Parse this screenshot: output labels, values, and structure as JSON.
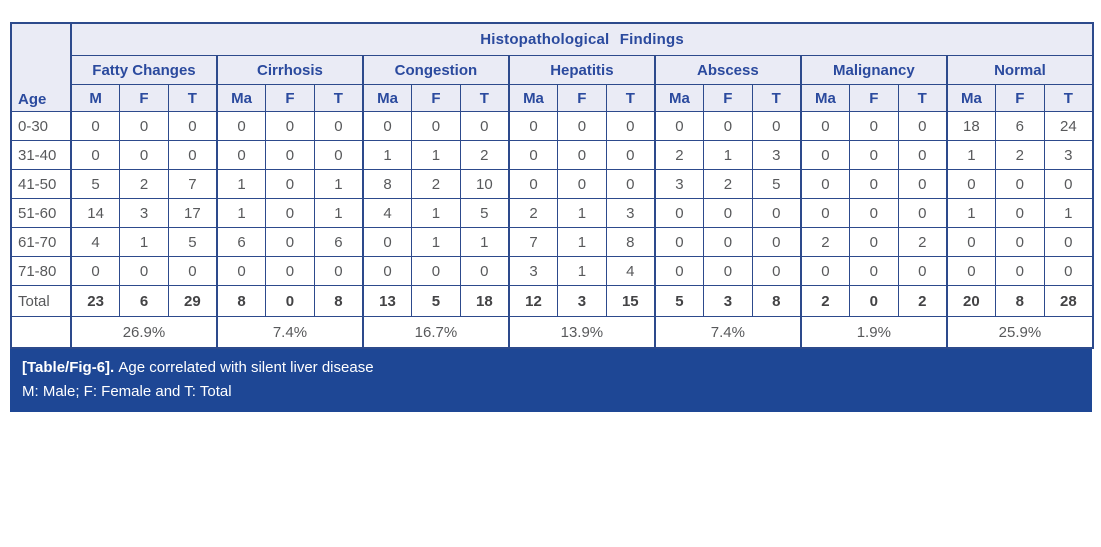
{
  "figure": {
    "title": "Histopathological Findings",
    "age_header": "Age",
    "groups": [
      {
        "name": "Fatty Changes",
        "subs": [
          "M",
          "F",
          "T"
        ],
        "percent": "26.9%"
      },
      {
        "name": "Cirrhosis",
        "subs": [
          "Ma",
          "F",
          "T"
        ],
        "percent": "7.4%"
      },
      {
        "name": "Congestion",
        "subs": [
          "Ma",
          "F",
          "T"
        ],
        "percent": "16.7%"
      },
      {
        "name": "Hepatitis",
        "subs": [
          "Ma",
          "F",
          "T"
        ],
        "percent": "13.9%"
      },
      {
        "name": "Abscess",
        "subs": [
          "Ma",
          "F",
          "T"
        ],
        "percent": "7.4%"
      },
      {
        "name": "Malignancy",
        "subs": [
          "Ma",
          "F",
          "T"
        ],
        "percent": "1.9%"
      },
      {
        "name": "Normal",
        "subs": [
          "Ma",
          "F",
          "T"
        ],
        "percent": "25.9%"
      }
    ],
    "rows": [
      {
        "age": "0-30",
        "values": [
          0,
          0,
          0,
          0,
          0,
          0,
          0,
          0,
          0,
          0,
          0,
          0,
          0,
          0,
          0,
          0,
          0,
          0,
          18,
          6,
          24
        ]
      },
      {
        "age": "31-40",
        "values": [
          0,
          0,
          0,
          0,
          0,
          0,
          1,
          1,
          2,
          0,
          0,
          0,
          2,
          1,
          3,
          0,
          0,
          0,
          1,
          2,
          3
        ]
      },
      {
        "age": "41-50",
        "values": [
          5,
          2,
          7,
          1,
          0,
          1,
          8,
          2,
          10,
          0,
          0,
          0,
          3,
          2,
          5,
          0,
          0,
          0,
          0,
          0,
          0
        ]
      },
      {
        "age": "51-60",
        "values": [
          14,
          3,
          17,
          1,
          0,
          1,
          4,
          1,
          5,
          2,
          1,
          3,
          0,
          0,
          0,
          0,
          0,
          0,
          1,
          0,
          1
        ]
      },
      {
        "age": "61-70",
        "values": [
          4,
          1,
          5,
          6,
          0,
          6,
          0,
          1,
          1,
          7,
          1,
          8,
          0,
          0,
          0,
          2,
          0,
          2,
          0,
          0,
          0
        ]
      },
      {
        "age": "71-80",
        "values": [
          0,
          0,
          0,
          0,
          0,
          0,
          0,
          0,
          0,
          3,
          1,
          4,
          0,
          0,
          0,
          0,
          0,
          0,
          0,
          0,
          0
        ]
      }
    ],
    "total": {
      "label": "Total",
      "values": [
        23,
        6,
        29,
        8,
        0,
        8,
        13,
        5,
        18,
        12,
        3,
        15,
        5,
        3,
        8,
        2,
        0,
        2,
        20,
        8,
        28
      ]
    }
  },
  "caption": {
    "tag": "[Table/Fig-6].",
    "text": "Age correlated with silent liver disease",
    "legend": "M: Male; F: Female and T: Total"
  },
  "colors": {
    "header_bg": "#eaebf5",
    "header_text": "#2b4a9e",
    "border": "#2d4a8c",
    "data_text": "#58595b",
    "caption_bg": "#1e4795",
    "caption_text": "#ffffff"
  },
  "chart_data": {
    "type": "table",
    "title": "Histopathological Findings",
    "row_header": "Age",
    "column_groups": [
      "Fatty Changes",
      "Cirrhosis",
      "Congestion",
      "Hepatitis",
      "Abscess",
      "Malignancy",
      "Normal"
    ],
    "subcolumns": [
      [
        "M",
        "F",
        "T"
      ],
      [
        "Ma",
        "F",
        "T"
      ],
      [
        "Ma",
        "F",
        "T"
      ],
      [
        "Ma",
        "F",
        "T"
      ],
      [
        "Ma",
        "F",
        "T"
      ],
      [
        "Ma",
        "F",
        "T"
      ],
      [
        "Ma",
        "F",
        "T"
      ]
    ],
    "categories": [
      "0-30",
      "31-40",
      "41-50",
      "51-60",
      "61-70",
      "71-80",
      "Total"
    ],
    "values": [
      [
        0,
        0,
        0,
        0,
        0,
        0,
        0,
        0,
        0,
        0,
        0,
        0,
        0,
        0,
        0,
        0,
        0,
        0,
        18,
        6,
        24
      ],
      [
        0,
        0,
        0,
        0,
        0,
        0,
        1,
        1,
        2,
        0,
        0,
        0,
        2,
        1,
        3,
        0,
        0,
        0,
        1,
        2,
        3
      ],
      [
        5,
        2,
        7,
        1,
        0,
        1,
        8,
        2,
        10,
        0,
        0,
        0,
        3,
        2,
        5,
        0,
        0,
        0,
        0,
        0,
        0
      ],
      [
        14,
        3,
        17,
        1,
        0,
        1,
        4,
        1,
        5,
        2,
        1,
        3,
        0,
        0,
        0,
        0,
        0,
        0,
        1,
        0,
        1
      ],
      [
        4,
        1,
        5,
        6,
        0,
        6,
        0,
        1,
        1,
        7,
        1,
        8,
        0,
        0,
        0,
        2,
        0,
        2,
        0,
        0,
        0
      ],
      [
        0,
        0,
        0,
        0,
        0,
        0,
        0,
        0,
        0,
        3,
        1,
        4,
        0,
        0,
        0,
        0,
        0,
        0,
        0,
        0,
        0
      ],
      [
        23,
        6,
        29,
        8,
        0,
        8,
        13,
        5,
        18,
        12,
        3,
        15,
        5,
        3,
        8,
        2,
        0,
        2,
        20,
        8,
        28
      ]
    ],
    "group_percentages": [
      "26.9%",
      "7.4%",
      "16.7%",
      "13.9%",
      "7.4%",
      "1.9%",
      "25.9%"
    ]
  }
}
